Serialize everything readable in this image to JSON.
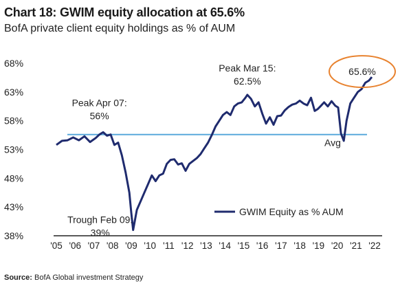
{
  "title": "Chart 18: GWIM equity allocation at 65.6%",
  "subtitle": "BofA private client equity holdings as % of AUM",
  "source_label": "Source:",
  "source_text": "BofA Global investment Strategy",
  "colors": {
    "series": "#1f2b6e",
    "avg": "#5aa9dc",
    "highlight": "#e8822e",
    "axis": "#222222"
  },
  "chart_data": {
    "type": "line",
    "title": "Chart 18: GWIM equity allocation at 65.6%",
    "subtitle": "BofA private client equity holdings as % of AUM",
    "xlabel": "",
    "ylabel": "",
    "ylim": [
      38,
      68
    ],
    "xlim": [
      2005,
      2022.4
    ],
    "ytick_values": [
      38,
      43,
      48,
      53,
      58,
      63,
      68
    ],
    "yticks": [
      "38%",
      "43%",
      "48%",
      "53%",
      "58%",
      "63%",
      "68%"
    ],
    "xtick_values": [
      2005,
      2006,
      2007,
      2008,
      2009,
      2010,
      2011,
      2012,
      2013,
      2014,
      2015,
      2016,
      2017,
      2018,
      2019,
      2020,
      2021,
      2022
    ],
    "xticks": [
      "'05",
      "'06",
      "'07",
      "'08",
      "'09",
      "'10",
      "'11",
      "'12",
      "'13",
      "'14",
      "'15",
      "'16",
      "'17",
      "'18",
      "'19",
      "'20",
      "'21",
      "'22"
    ],
    "grid": false,
    "legend": "bottom-right",
    "series": [
      {
        "name": "GWIM Equity as % AUM",
        "x": [
          2005.0,
          2005.3,
          2005.6,
          2005.9,
          2006.2,
          2006.5,
          2006.8,
          2007.1,
          2007.3,
          2007.5,
          2007.7,
          2007.9,
          2008.1,
          2008.3,
          2008.5,
          2008.7,
          2008.9,
          2009.0,
          2009.1,
          2009.3,
          2009.5,
          2009.7,
          2009.9,
          2010.1,
          2010.3,
          2010.5,
          2010.7,
          2010.9,
          2011.1,
          2011.3,
          2011.5,
          2011.7,
          2011.9,
          2012.1,
          2012.3,
          2012.5,
          2012.7,
          2012.9,
          2013.1,
          2013.3,
          2013.5,
          2013.7,
          2013.9,
          2014.1,
          2014.3,
          2014.5,
          2014.7,
          2014.9,
          2015.1,
          2015.2,
          2015.4,
          2015.6,
          2015.8,
          2016.0,
          2016.2,
          2016.4,
          2016.6,
          2016.8,
          2017.0,
          2017.2,
          2017.4,
          2017.6,
          2017.8,
          2018.0,
          2018.2,
          2018.4,
          2018.6,
          2018.8,
          2018.95,
          2019.1,
          2019.3,
          2019.5,
          2019.7,
          2019.9,
          2020.05,
          2020.2,
          2020.35,
          2020.5,
          2020.7,
          2020.9,
          2021.1,
          2021.3,
          2021.5,
          2021.7,
          2021.85
        ],
        "values": [
          53.8,
          54.5,
          54.6,
          55.1,
          54.6,
          55.3,
          54.3,
          55.0,
          55.6,
          56.0,
          55.4,
          55.6,
          53.8,
          54.2,
          52.0,
          49.0,
          45.5,
          42.0,
          39.0,
          42.5,
          44.0,
          45.5,
          47.0,
          48.5,
          47.5,
          48.5,
          48.8,
          50.5,
          51.2,
          51.3,
          50.4,
          50.6,
          49.3,
          50.5,
          51.0,
          51.5,
          52.2,
          53.2,
          54.2,
          55.5,
          57.0,
          58.0,
          59.0,
          59.5,
          59.0,
          60.5,
          61.0,
          61.2,
          62.0,
          62.5,
          61.8,
          60.5,
          61.2,
          59.2,
          57.5,
          58.6,
          57.3,
          58.8,
          58.9,
          59.8,
          60.4,
          60.8,
          61.0,
          61.5,
          61.0,
          60.7,
          62.0,
          59.7,
          60.0,
          60.5,
          61.2,
          60.5,
          61.4,
          60.6,
          60.3,
          55.8,
          54.5,
          58.0,
          61.0,
          62.0,
          63.0,
          63.5,
          64.6,
          65.0,
          65.6
        ]
      }
    ],
    "average": {
      "label": "Avg",
      "value": 55.6
    },
    "annotations": [
      {
        "label": "Peak Apr 07:",
        "value_label": "56%",
        "x": 2007.3,
        "y": 56
      },
      {
        "label": "Trough Feb 09:",
        "value_label": "39%",
        "x": 2009.1,
        "y": 39
      },
      {
        "label": "Peak Mar 15:",
        "value_label": "62.5%",
        "x": 2015.2,
        "y": 62.5
      },
      {
        "label": "65.6%",
        "x": 2021.85,
        "y": 65.6
      }
    ]
  }
}
